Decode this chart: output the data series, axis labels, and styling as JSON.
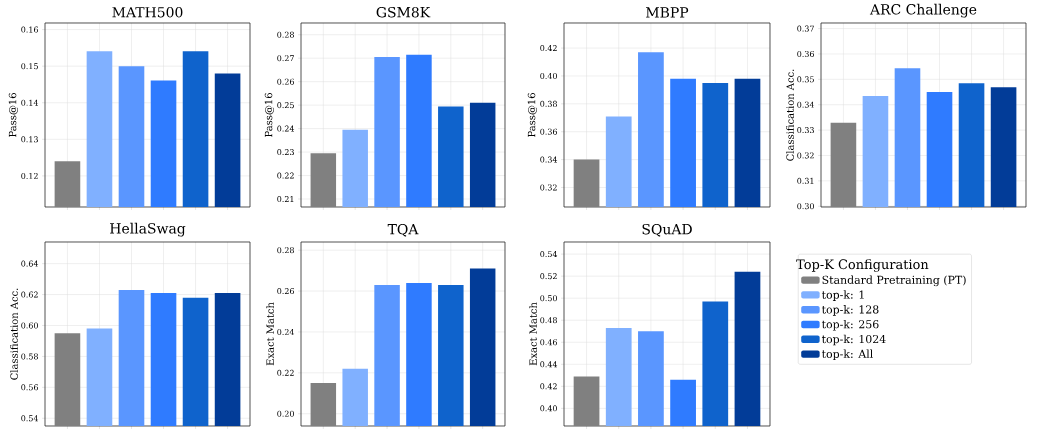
{
  "chart_data": [
    {
      "type": "bar",
      "title": "MATH500",
      "ylabel": "Pass@16",
      "categories": [
        null,
        null,
        null,
        null,
        null,
        null
      ],
      "ylim": [
        0.1115,
        0.1618
      ],
      "yticks": [
        0.12,
        0.13,
        0.14,
        0.15,
        0.16
      ],
      "grid": true,
      "tick_labels": "y",
      "series": [
        {
          "color": "#808080",
          "values": [
            0.124,
            null,
            null,
            null,
            null,
            null
          ]
        },
        {
          "color": "#80b0ff",
          "values": [
            null,
            0.1541,
            null,
            null,
            null,
            null
          ]
        },
        {
          "color": "#5a96ff",
          "values": [
            null,
            null,
            0.15,
            null,
            null,
            null
          ]
        },
        {
          "color": "#2f7bff",
          "values": [
            null,
            null,
            null,
            0.1461,
            null,
            null
          ]
        },
        {
          "color": "#0f63cc",
          "values": [
            null,
            null,
            null,
            null,
            0.1541,
            null
          ]
        },
        {
          "color": "#023c98",
          "values": [
            null,
            null,
            null,
            null,
            null,
            0.148
          ]
        }
      ]
    },
    {
      "type": "bar",
      "title": "GSM8K",
      "ylabel": "Pass@16",
      "categories": [
        null,
        null,
        null,
        null,
        null,
        null
      ],
      "ylim": [
        0.2066,
        0.285
      ],
      "yticks": [
        0.21,
        0.22,
        0.23,
        0.24,
        0.25,
        0.26,
        0.27,
        0.28
      ],
      "grid": true,
      "tick_labels": "y",
      "series": [
        {
          "color": "#808080",
          "values": [
            0.2295,
            null,
            null,
            null,
            null,
            null
          ]
        },
        {
          "color": "#80b0ff",
          "values": [
            null,
            0.2395,
            null,
            null,
            null,
            null
          ]
        },
        {
          "color": "#5a96ff",
          "values": [
            null,
            null,
            0.2705,
            null,
            null,
            null
          ]
        },
        {
          "color": "#2f7bff",
          "values": [
            null,
            null,
            null,
            0.2715,
            null,
            null
          ]
        },
        {
          "color": "#0f63cc",
          "values": [
            null,
            null,
            null,
            null,
            0.2494,
            null
          ]
        },
        {
          "color": "#023c98",
          "values": [
            null,
            null,
            null,
            null,
            null,
            0.251
          ]
        }
      ]
    },
    {
      "type": "bar",
      "title": "MBPP",
      "ylabel": "Pass@16",
      "categories": [
        null,
        null,
        null,
        null,
        null,
        null
      ],
      "ylim": [
        0.306,
        0.438
      ],
      "yticks": [
        0.32,
        0.34,
        0.36,
        0.38,
        {
          "value": 0.4,
          "label": "0.40"
        },
        0.42
      ],
      "grid": true,
      "tick_labels": "y",
      "series": [
        {
          "color": "#808080",
          "values": [
            0.34,
            null,
            null,
            null,
            null,
            null
          ]
        },
        {
          "color": "#80b0ff",
          "values": [
            null,
            0.371,
            null,
            null,
            null,
            null
          ]
        },
        {
          "color": "#5a96ff",
          "values": [
            null,
            null,
            0.417,
            null,
            null,
            null
          ]
        },
        {
          "color": "#2f7bff",
          "values": [
            null,
            null,
            null,
            0.398,
            null,
            null
          ]
        },
        {
          "color": "#0f63cc",
          "values": [
            null,
            null,
            null,
            null,
            0.395,
            null
          ]
        },
        {
          "color": "#023c98",
          "values": [
            null,
            null,
            null,
            null,
            null,
            0.398
          ]
        }
      ]
    },
    {
      "type": "bar",
      "title": "ARC Challenge",
      "ylabel": "Classification Acc.",
      "categories": [
        null,
        null,
        null,
        null,
        null,
        null
      ],
      "ylim": [
        0.2997,
        0.3722
      ],
      "yticks": [
        {
          "value": 0.3,
          "label": "0.30"
        },
        0.31,
        0.32,
        0.33,
        0.34,
        0.35,
        0.36,
        0.37
      ],
      "grid": true,
      "tick_labels": "y",
      "series": [
        {
          "color": "#808080",
          "values": [
            0.3329,
            null,
            null,
            null,
            null,
            null
          ]
        },
        {
          "color": "#80b0ff",
          "values": [
            null,
            0.3434,
            null,
            null,
            null,
            null
          ]
        },
        {
          "color": "#5a96ff",
          "values": [
            null,
            null,
            0.3544,
            null,
            null,
            null
          ]
        },
        {
          "color": "#2f7bff",
          "values": [
            null,
            null,
            null,
            0.345,
            null,
            null
          ]
        },
        {
          "color": "#0f63cc",
          "values": [
            null,
            null,
            null,
            null,
            0.3485,
            null
          ]
        },
        {
          "color": "#023c98",
          "values": [
            null,
            null,
            null,
            null,
            null,
            0.3469
          ]
        }
      ]
    },
    {
      "type": "bar",
      "title": "HellaSwag",
      "ylabel": "Classification Acc.",
      "categories": [
        null,
        null,
        null,
        null,
        null,
        null
      ],
      "ylim": [
        0.535,
        0.654
      ],
      "yticks": [
        0.54,
        0.56,
        0.58,
        {
          "value": 0.6,
          "label": "0.60"
        },
        0.62,
        0.64
      ],
      "grid": true,
      "tick_labels": "y",
      "series": [
        {
          "color": "#808080",
          "values": [
            0.595,
            null,
            null,
            null,
            null,
            null
          ]
        },
        {
          "color": "#80b0ff",
          "values": [
            null,
            0.598,
            null,
            null,
            null,
            null
          ]
        },
        {
          "color": "#5a96ff",
          "values": [
            null,
            null,
            0.623,
            null,
            null,
            null
          ]
        },
        {
          "color": "#2f7bff",
          "values": [
            null,
            null,
            null,
            0.621,
            null,
            null
          ]
        },
        {
          "color": "#0f63cc",
          "values": [
            null,
            null,
            null,
            null,
            0.618,
            null
          ]
        },
        {
          "color": "#023c98",
          "values": [
            null,
            null,
            null,
            null,
            null,
            0.621
          ]
        }
      ]
    },
    {
      "type": "bar",
      "title": "TQA",
      "ylabel": "Exact Match",
      "categories": [
        null,
        null,
        null,
        null,
        null,
        null
      ],
      "ylim": [
        0.194,
        0.284
      ],
      "yticks": [
        {
          "value": 0.2,
          "label": "0.20"
        },
        0.22,
        0.24,
        0.26,
        0.28
      ],
      "grid": true,
      "tick_labels": "y",
      "series": [
        {
          "color": "#808080",
          "values": [
            0.215,
            null,
            null,
            null,
            null,
            null
          ]
        },
        {
          "color": "#80b0ff",
          "values": [
            null,
            0.222,
            null,
            null,
            null,
            null
          ]
        },
        {
          "color": "#5a96ff",
          "values": [
            null,
            null,
            0.263,
            null,
            null,
            null
          ]
        },
        {
          "color": "#2f7bff",
          "values": [
            null,
            null,
            null,
            0.264,
            null,
            null
          ]
        },
        {
          "color": "#0f63cc",
          "values": [
            null,
            null,
            null,
            null,
            0.263,
            null
          ]
        },
        {
          "color": "#023c98",
          "values": [
            null,
            null,
            null,
            null,
            null,
            0.271
          ]
        }
      ]
    },
    {
      "type": "bar",
      "title": "SQuAD",
      "ylabel": "Exact Match",
      "categories": [
        null,
        null,
        null,
        null,
        null,
        null
      ],
      "ylim": [
        0.384,
        0.551
      ],
      "yticks": [
        {
          "value": 0.4,
          "label": "0.40"
        },
        0.42,
        0.44,
        0.46,
        0.48,
        {
          "value": 0.5,
          "label": "0.50"
        },
        0.52,
        0.54
      ],
      "grid": true,
      "tick_labels": "y",
      "legend": "right",
      "legend_title": "Top-K Configuration",
      "series": [
        {
          "name": "Standard Pretraining (PT)",
          "color": "#808080",
          "values": [
            0.429,
            null,
            null,
            null,
            null,
            null
          ]
        },
        {
          "name": "top-k: 1",
          "color": "#80b0ff",
          "values": [
            null,
            0.473,
            null,
            null,
            null,
            null
          ]
        },
        {
          "name": "top-k: 128",
          "color": "#5a96ff",
          "values": [
            null,
            null,
            0.47,
            null,
            null,
            null
          ]
        },
        {
          "name": "top-k: 256",
          "color": "#2f7bff",
          "values": [
            null,
            null,
            null,
            0.426,
            null,
            null
          ]
        },
        {
          "name": "top-k: 1024",
          "color": "#0f63cc",
          "values": [
            null,
            null,
            null,
            null,
            0.497,
            null
          ]
        },
        {
          "name": "top-k: All",
          "color": "#023c98",
          "values": [
            null,
            null,
            null,
            null,
            null,
            0.524
          ]
        }
      ]
    }
  ]
}
